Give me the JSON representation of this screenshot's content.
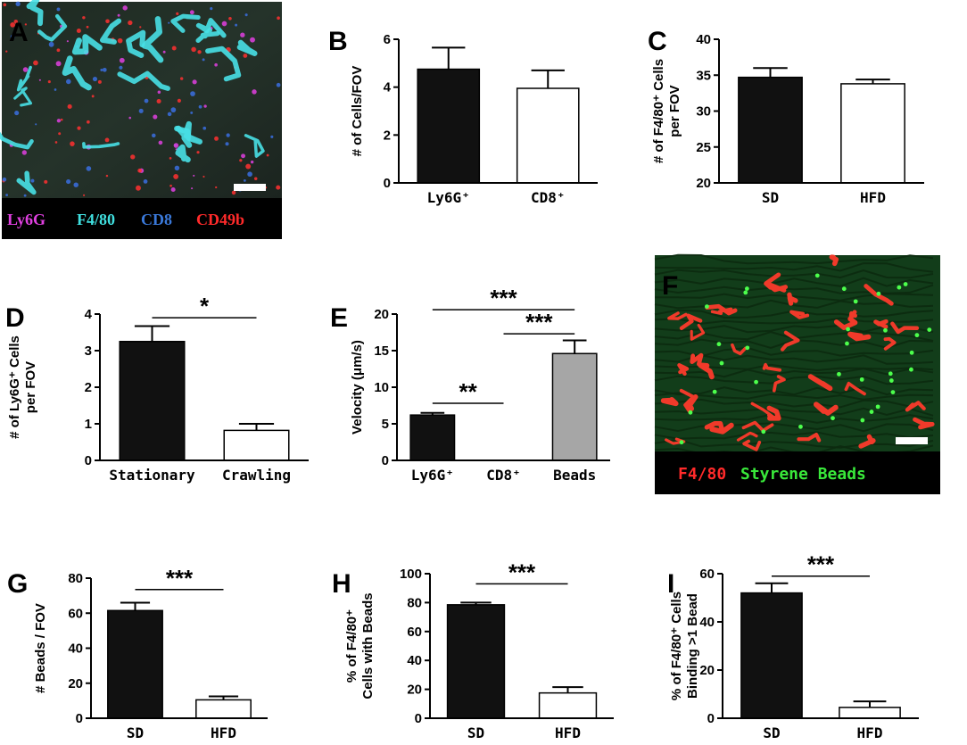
{
  "colors": {
    "black": "#111111",
    "white": "#ffffff",
    "gray": "#a6a6a6",
    "magenta": "#e040e0",
    "cyan": "#40e0e0",
    "blue": "#3a78d8",
    "red": "#ff2a2a",
    "green": "#39e83a"
  },
  "panels": {
    "A": {
      "label": "A",
      "legend": [
        {
          "text": "Ly6G",
          "color": "#e040e0"
        },
        {
          "text": "F4/80",
          "color": "#40e0e0"
        },
        {
          "text": "CD8",
          "color": "#3a78d8"
        },
        {
          "text": "CD49b",
          "color": "#ff2a2a"
        }
      ]
    },
    "F": {
      "label": "F",
      "legend": [
        {
          "text": "F4/80",
          "color": "#ff2a2a"
        },
        {
          "text": "Styrene Beads",
          "color": "#39e83a"
        }
      ]
    }
  },
  "chart_data": [
    {
      "id": "B",
      "label": "B",
      "type": "bar",
      "categories": [
        "Ly6G⁺",
        "CD8⁺"
      ],
      "values": [
        4.75,
        3.95
      ],
      "errors": [
        0.9,
        0.75
      ],
      "fills": [
        "black",
        "white"
      ],
      "ylabel": [
        "# of Cells/FOV"
      ],
      "ylim": [
        0,
        6
      ],
      "yticks": [
        0,
        2,
        4,
        6
      ],
      "significance": []
    },
    {
      "id": "C",
      "label": "C",
      "type": "bar",
      "categories": [
        "SD",
        "HFD"
      ],
      "values": [
        34.7,
        33.8
      ],
      "errors": [
        1.3,
        0.6
      ],
      "fills": [
        "black",
        "white"
      ],
      "ylabel": [
        "# of F4/80⁺ Cells",
        "per FOV"
      ],
      "ylim": [
        20,
        40
      ],
      "yticks": [
        20,
        25,
        30,
        35,
        40
      ],
      "significance": []
    },
    {
      "id": "D",
      "label": "D",
      "type": "bar",
      "categories": [
        "Stationary",
        "Crawling"
      ],
      "values": [
        3.25,
        0.82
      ],
      "errors": [
        0.42,
        0.18
      ],
      "fills": [
        "black",
        "white"
      ],
      "ylabel": [
        "# of Ly6G⁺ Cells",
        "per FOV"
      ],
      "ylim": [
        0,
        4
      ],
      "yticks": [
        0,
        1,
        2,
        3,
        4
      ],
      "significance": [
        {
          "from": 0,
          "to": 1,
          "y": 3.9,
          "text": "*"
        }
      ]
    },
    {
      "id": "E",
      "label": "E",
      "type": "bar",
      "categories": [
        "Ly6G⁺",
        "CD8⁺",
        "Beads"
      ],
      "values": [
        6.2,
        0,
        14.6
      ],
      "errors": [
        0.3,
        0,
        1.8
      ],
      "fills": [
        "black",
        "white",
        "gray"
      ],
      "ylabel": [
        "Velocity (μm/s)"
      ],
      "ylim": [
        0,
        20
      ],
      "yticks": [
        0,
        5,
        10,
        15,
        20
      ],
      "significance": [
        {
          "from": 0,
          "to": 2,
          "y": 20.6,
          "text": "***"
        },
        {
          "from": 1,
          "to": 2,
          "y": 17.3,
          "text": "***"
        },
        {
          "from": 0,
          "to": 1,
          "y": 7.8,
          "text": "**"
        }
      ]
    },
    {
      "id": "G",
      "label": "G",
      "type": "bar",
      "categories": [
        "SD",
        "HFD"
      ],
      "values": [
        61.5,
        10.5
      ],
      "errors": [
        4.5,
        2.0
      ],
      "fills": [
        "black",
        "white"
      ],
      "ylabel": [
        "# Beads / FOV"
      ],
      "ylim": [
        0,
        80
      ],
      "yticks": [
        0,
        20,
        40,
        60,
        80
      ],
      "significance": [
        {
          "from": 0,
          "to": 1,
          "y": 73.5,
          "text": "***"
        }
      ]
    },
    {
      "id": "H",
      "label": "H",
      "type": "bar",
      "categories": [
        "SD",
        "HFD"
      ],
      "values": [
        78.5,
        17.5
      ],
      "errors": [
        1.5,
        4.0
      ],
      "fills": [
        "black",
        "white"
      ],
      "ylabel": [
        "% of F4/80⁺",
        "Cells with Beads"
      ],
      "ylim": [
        0,
        100
      ],
      "yticks": [
        0,
        20,
        40,
        60,
        80,
        100
      ],
      "significance": [
        {
          "from": 0,
          "to": 1,
          "y": 93,
          "text": "***"
        }
      ]
    },
    {
      "id": "I",
      "label": "I",
      "type": "bar",
      "categories": [
        "SD",
        "HFD"
      ],
      "values": [
        52.0,
        4.5
      ],
      "errors": [
        4.0,
        2.5
      ],
      "fills": [
        "black",
        "white"
      ],
      "ylabel": [
        "% of F4/80⁺ Cells",
        "Binding >1 Bead"
      ],
      "ylim": [
        0,
        60
      ],
      "yticks": [
        0,
        20,
        40,
        60
      ],
      "significance": [
        {
          "from": 0,
          "to": 1,
          "y": 59,
          "text": "***"
        }
      ]
    }
  ]
}
